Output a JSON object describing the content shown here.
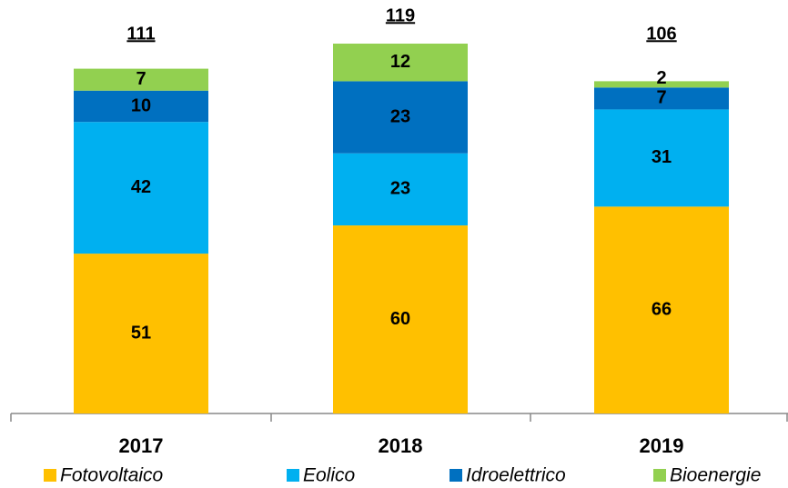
{
  "chart_data": {
    "type": "stacked_bar",
    "categories": [
      "2017",
      "2018",
      "2019"
    ],
    "series": [
      {
        "name": "Fotovoltaico",
        "color": "#FFC000",
        "values": [
          51,
          60,
          66
        ]
      },
      {
        "name": "Eolico",
        "color": "#00B0F0",
        "values": [
          42,
          23,
          31
        ]
      },
      {
        "name": "Idroelettrico",
        "color": "#0070C0",
        "values": [
          10,
          23,
          7
        ]
      },
      {
        "name": "Bioenergie",
        "color": "#92D050",
        "values": [
          7,
          12,
          2
        ]
      }
    ],
    "totals": [
      111,
      119,
      106
    ]
  }
}
